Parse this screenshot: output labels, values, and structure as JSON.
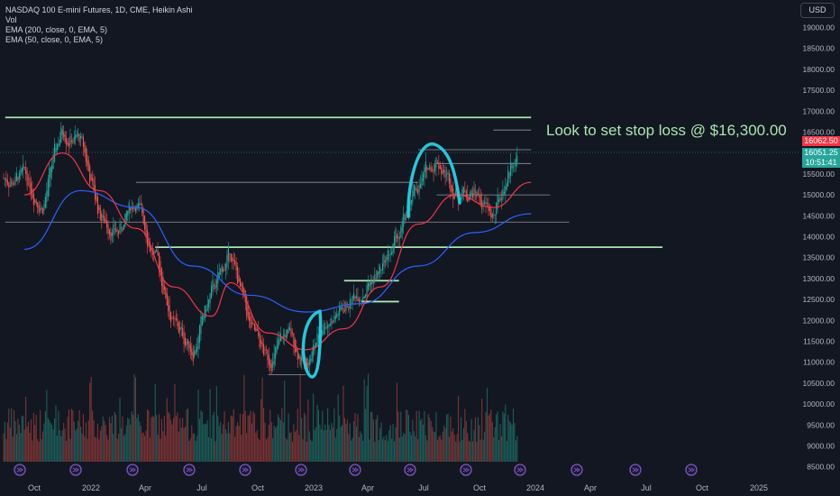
{
  "legend": {
    "symbol_line": "NASDAQ 100 E-mini Futures, 1D, CME, Heikin Ashi",
    "vol": "Vol",
    "ema200": "EMA (200, close, 0, EMA, 5)",
    "ema50": "EMA (50, close, 0, EMA, 5)"
  },
  "currency_button": "USD",
  "annotation": "Look to set stop loss @ $16,300.00",
  "price_tags": {
    "last_high": "16062.50",
    "last_price": "16051.25",
    "countdown": "10:51:41"
  },
  "colors": {
    "background": "#131722",
    "up": "#26a69a",
    "down": "#ef5350",
    "ema200": "#2962ff",
    "ema50": "#f23645",
    "trendline": "#a8e6b0",
    "drawing": "#26c6da",
    "event_icon": "#7e57c2"
  },
  "chart_data": {
    "type": "candlestick",
    "title": "NASDAQ 100 E-mini Futures, 1D, CME, Heikin Ashi",
    "y_axis": {
      "min": 8500,
      "max": 19000,
      "ticks": [
        19000,
        18500,
        18000,
        17500,
        17000,
        16500,
        16000,
        15500,
        15000,
        14500,
        14000,
        13500,
        13000,
        12500,
        12000,
        11500,
        11000,
        10500,
        10000,
        9500,
        9000,
        8500
      ],
      "tick_labels": [
        "19000.00",
        "18500.00",
        "18000.00",
        "17500.00",
        "17000.00",
        "16500.00",
        "16000.00",
        "15500.00",
        "15000.00",
        "14500.00",
        "14000.00",
        "13500.00",
        "13000.00",
        "12500.00",
        "12000.00",
        "11500.00",
        "11000.00",
        "10500.00",
        "10000.00",
        "9500.00",
        "9000.00",
        "8500.00"
      ]
    },
    "x_axis": {
      "tick_labels": [
        "Oct",
        "2022",
        "Apr",
        "Jul",
        "Oct",
        "2023",
        "Apr",
        "Jul",
        "Oct",
        "2024",
        "Apr",
        "Jul",
        "Oct",
        "2025"
      ]
    },
    "price_path": [
      [
        "2021-09",
        15400
      ],
      [
        "2021-10",
        14800
      ],
      [
        "2021-11",
        16600
      ],
      [
        "2021-12",
        16300
      ],
      [
        "2022-01",
        14500
      ],
      [
        "2022-02",
        14100
      ],
      [
        "2022-03",
        14900
      ],
      [
        "2022-04",
        13500
      ],
      [
        "2022-05",
        11900
      ],
      [
        "2022-06",
        11300
      ],
      [
        "2022-07",
        12600
      ],
      [
        "2022-08",
        13600
      ],
      [
        "2022-09",
        11800
      ],
      [
        "2022-10",
        11000
      ],
      [
        "2022-11",
        11700
      ],
      [
        "2022-12",
        10900
      ],
      [
        "2023-01",
        12000
      ],
      [
        "2023-02",
        12300
      ],
      [
        "2023-03",
        12800
      ],
      [
        "2023-04",
        13200
      ],
      [
        "2023-05",
        14000
      ],
      [
        "2023-06",
        15200
      ],
      [
        "2023-07",
        15900
      ],
      [
        "2023-08",
        15100
      ],
      [
        "2023-09",
        15100
      ],
      [
        "2023-10",
        14400
      ],
      [
        "2023-11",
        15900
      ],
      [
        "2023-12",
        16050
      ]
    ],
    "ema200_path": [
      [
        "2021-09",
        13700
      ],
      [
        "2021-12",
        15100
      ],
      [
        "2022-03",
        14700
      ],
      [
        "2022-06",
        13300
      ],
      [
        "2022-09",
        12600
      ],
      [
        "2022-12",
        12200
      ],
      [
        "2023-03",
        12400
      ],
      [
        "2023-06",
        13300
      ],
      [
        "2023-09",
        14100
      ],
      [
        "2023-12",
        14550
      ]
    ],
    "ema50_path": [
      [
        "2021-09",
        15000
      ],
      [
        "2021-11",
        16000
      ],
      [
        "2022-01",
        15100
      ],
      [
        "2022-03",
        14200
      ],
      [
        "2022-05",
        12800
      ],
      [
        "2022-07",
        12100
      ],
      [
        "2022-08",
        12900
      ],
      [
        "2022-10",
        11700
      ],
      [
        "2022-12",
        11300
      ],
      [
        "2023-02",
        11800
      ],
      [
        "2023-04",
        12800
      ],
      [
        "2023-06",
        14300
      ],
      [
        "2023-08",
        15000
      ],
      [
        "2023-10",
        14700
      ],
      [
        "2023-12",
        15300
      ]
    ],
    "horizontal_levels": [
      {
        "price": 16850,
        "from": "2021-08",
        "to": "2023-12"
      },
      {
        "price": 16550,
        "from": "2023-10",
        "to": "2023-12"
      },
      {
        "price": 16080,
        "from": "2023-06",
        "to": "2023-12"
      },
      {
        "price": 15750,
        "from": "2023-07",
        "to": "2023-12"
      },
      {
        "price": 15300,
        "from": "2022-03",
        "to": "2023-06"
      },
      {
        "price": 15000,
        "from": "2023-07",
        "to": "2024-01"
      },
      {
        "price": 14350,
        "from": "2021-08",
        "to": "2024-02"
      },
      {
        "price": 13750,
        "from": "2022-04",
        "to": "2024-07"
      },
      {
        "price": 12950,
        "from": "2023-02",
        "to": "2023-05"
      },
      {
        "price": 12450,
        "from": "2023-03",
        "to": "2023-05"
      },
      {
        "price": 10700,
        "from": "2022-10",
        "to": "2022-12"
      }
    ],
    "volume": "relative daily volume bars, colored by candle direction",
    "grid": false,
    "legend_position": "top-left"
  }
}
